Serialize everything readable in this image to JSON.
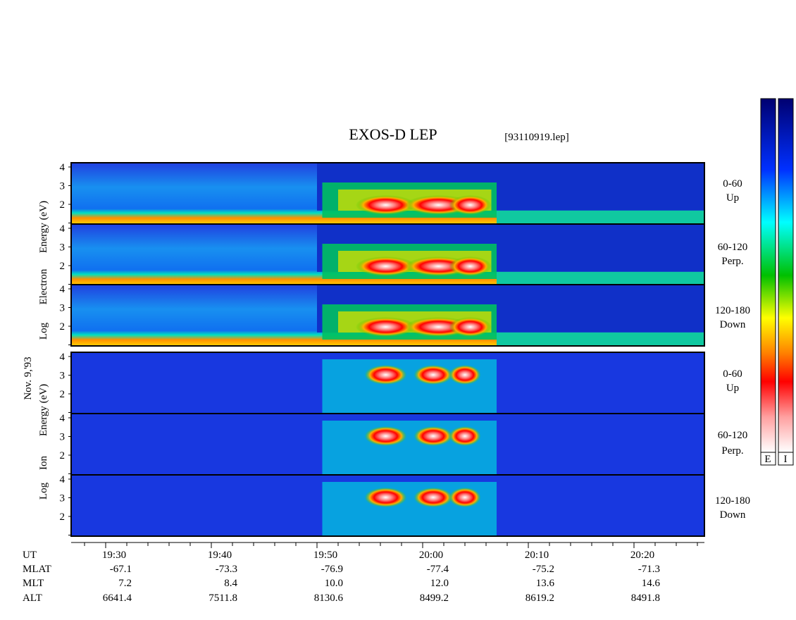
{
  "header": {
    "title": "EXOS-D LEP",
    "file": "[93110919.lep]"
  },
  "date": "Nov. 9,'93",
  "electron_axis_label": [
    "Log",
    "Electron",
    "Energy (eV)"
  ],
  "ion_axis_label": [
    "Log",
    "Ion",
    "Energy (eV)"
  ],
  "energy_ticks": [
    "2",
    "3",
    "4"
  ],
  "channels": [
    [
      "0-60",
      "Up"
    ],
    [
      "60-120",
      "Perp."
    ],
    [
      "120-180",
      "Down"
    ]
  ],
  "footer": [
    {
      "name": "UT",
      "values": [
        "19:30",
        "19:40",
        "19:50",
        "20:00",
        "20:10",
        "20:20"
      ]
    },
    {
      "name": "MLAT",
      "values": [
        "-67.1",
        "-73.3",
        "-76.9",
        "-77.4",
        "-75.2",
        "-71.3"
      ]
    },
    {
      "name": "MLT",
      "values": [
        "7.2",
        "8.4",
        "10.0",
        "12.0",
        "13.6",
        "14.6"
      ]
    },
    {
      "name": "ALT",
      "values": [
        "6641.4",
        "7511.8",
        "8130.6",
        "8499.2",
        "8619.2",
        "8491.8"
      ]
    }
  ],
  "colorbar_labels": [
    "E",
    "I"
  ]
}
